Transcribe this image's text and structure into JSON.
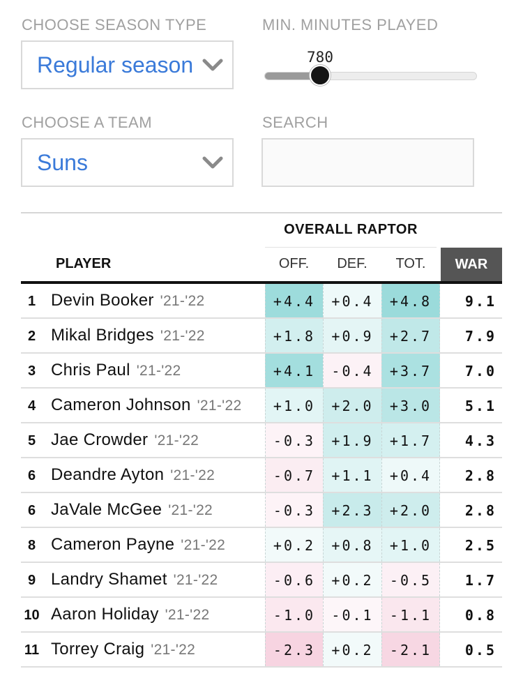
{
  "controls": {
    "season_type": {
      "label": "CHOOSE SEASON TYPE",
      "value": "Regular season"
    },
    "min_minutes": {
      "label": "MIN. MINUTES PLAYED",
      "value": 780,
      "range_min": 0,
      "range_max": 3000,
      "display": "780"
    },
    "team": {
      "label": "CHOOSE A TEAM",
      "value": "Suns"
    },
    "search": {
      "label": "SEARCH",
      "value": "",
      "placeholder": ""
    }
  },
  "table": {
    "group_header": "OVERALL RAPTOR",
    "columns": {
      "player": "PLAYER",
      "off": "OFF.",
      "def": "DEF.",
      "tot": "TOT.",
      "war": "WAR"
    },
    "colors": {
      "positive": "#68c9c9",
      "negative": "#e889ad",
      "header_bg": "#555555"
    },
    "rows": [
      {
        "rank": "1",
        "name": "Devin Booker",
        "season": "'21-'22",
        "off": "+4.4",
        "def": "+0.4",
        "tot": "+4.8",
        "war": "9.1"
      },
      {
        "rank": "2",
        "name": "Mikal Bridges",
        "season": "'21-'22",
        "off": "+1.8",
        "def": "+0.9",
        "tot": "+2.7",
        "war": "7.9"
      },
      {
        "rank": "3",
        "name": "Chris Paul",
        "season": "'21-'22",
        "off": "+4.1",
        "def": "-0.4",
        "tot": "+3.7",
        "war": "7.0"
      },
      {
        "rank": "4",
        "name": "Cameron Johnson",
        "season": "'21-'22",
        "off": "+1.0",
        "def": "+2.0",
        "tot": "+3.0",
        "war": "5.1"
      },
      {
        "rank": "5",
        "name": "Jae Crowder",
        "season": "'21-'22",
        "off": "-0.3",
        "def": "+1.9",
        "tot": "+1.7",
        "war": "4.3"
      },
      {
        "rank": "6",
        "name": "Deandre Ayton",
        "season": "'21-'22",
        "off": "-0.7",
        "def": "+1.1",
        "tot": "+0.4",
        "war": "2.8"
      },
      {
        "rank": "6",
        "name": "JaVale McGee",
        "season": "'21-'22",
        "off": "-0.3",
        "def": "+2.3",
        "tot": "+2.0",
        "war": "2.8"
      },
      {
        "rank": "8",
        "name": "Cameron Payne",
        "season": "'21-'22",
        "off": "+0.2",
        "def": "+0.8",
        "tot": "+1.0",
        "war": "2.5"
      },
      {
        "rank": "9",
        "name": "Landry Shamet",
        "season": "'21-'22",
        "off": "-0.6",
        "def": "+0.2",
        "tot": "-0.5",
        "war": "1.7"
      },
      {
        "rank": "10",
        "name": "Aaron Holiday",
        "season": "'21-'22",
        "off": "-1.0",
        "def": "-0.1",
        "tot": "-1.1",
        "war": "0.8"
      },
      {
        "rank": "11",
        "name": "Torrey Craig",
        "season": "'21-'22",
        "off": "-2.3",
        "def": "+0.2",
        "tot": "-2.1",
        "war": "0.5"
      }
    ]
  }
}
